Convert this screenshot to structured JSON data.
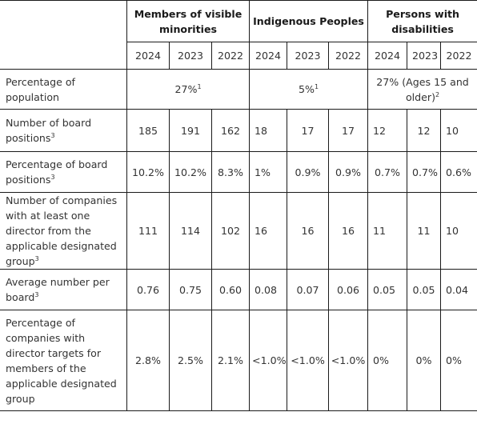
{
  "groups": [
    {
      "label": "Members of visible minorities"
    },
    {
      "label": "Indigenous Peoples"
    },
    {
      "label": "Persons with disabilities"
    }
  ],
  "years": [
    "2024",
    "2023",
    "2022"
  ],
  "rows": [
    {
      "label": "Percentage of population",
      "sup": "",
      "merged": [
        {
          "value": "27%",
          "sup": "1"
        },
        {
          "value": "5%",
          "sup": "1"
        },
        {
          "value": "27% (Ages 15 and older)",
          "sup": "2"
        }
      ]
    },
    {
      "label": "Number of board positions",
      "sup": "3",
      "cells": [
        "185",
        "191",
        "162",
        "18",
        "17",
        "17",
        "12",
        "12",
        "10"
      ]
    },
    {
      "label": "Percentage of board positions",
      "sup": "3",
      "cells": [
        "10.2%",
        "10.2%",
        "8.3%",
        "1%",
        "0.9%",
        "0.9%",
        "0.7%",
        "0.7%",
        "0.6%"
      ]
    },
    {
      "label": "Number of companies with at least one director from the applicable designated group",
      "sup": "3",
      "cells": [
        "111",
        "114",
        "102",
        "16",
        "16",
        "16",
        "11",
        "11",
        "10"
      ]
    },
    {
      "label": "Average number per board",
      "sup": "3",
      "cells": [
        "0.76",
        "0.75",
        "0.60",
        "0.08",
        "0.07",
        "0.06",
        "0.05",
        "0.05",
        "0.04"
      ]
    },
    {
      "label": "Percentage of companies with director targets for members of the applicable designated group",
      "sup": "",
      "cells": [
        "2.8%",
        "2.5%",
        "2.1%",
        "<1.0%",
        "<1.0%",
        "<1.0%",
        "0%",
        "0%",
        "0%"
      ]
    }
  ]
}
